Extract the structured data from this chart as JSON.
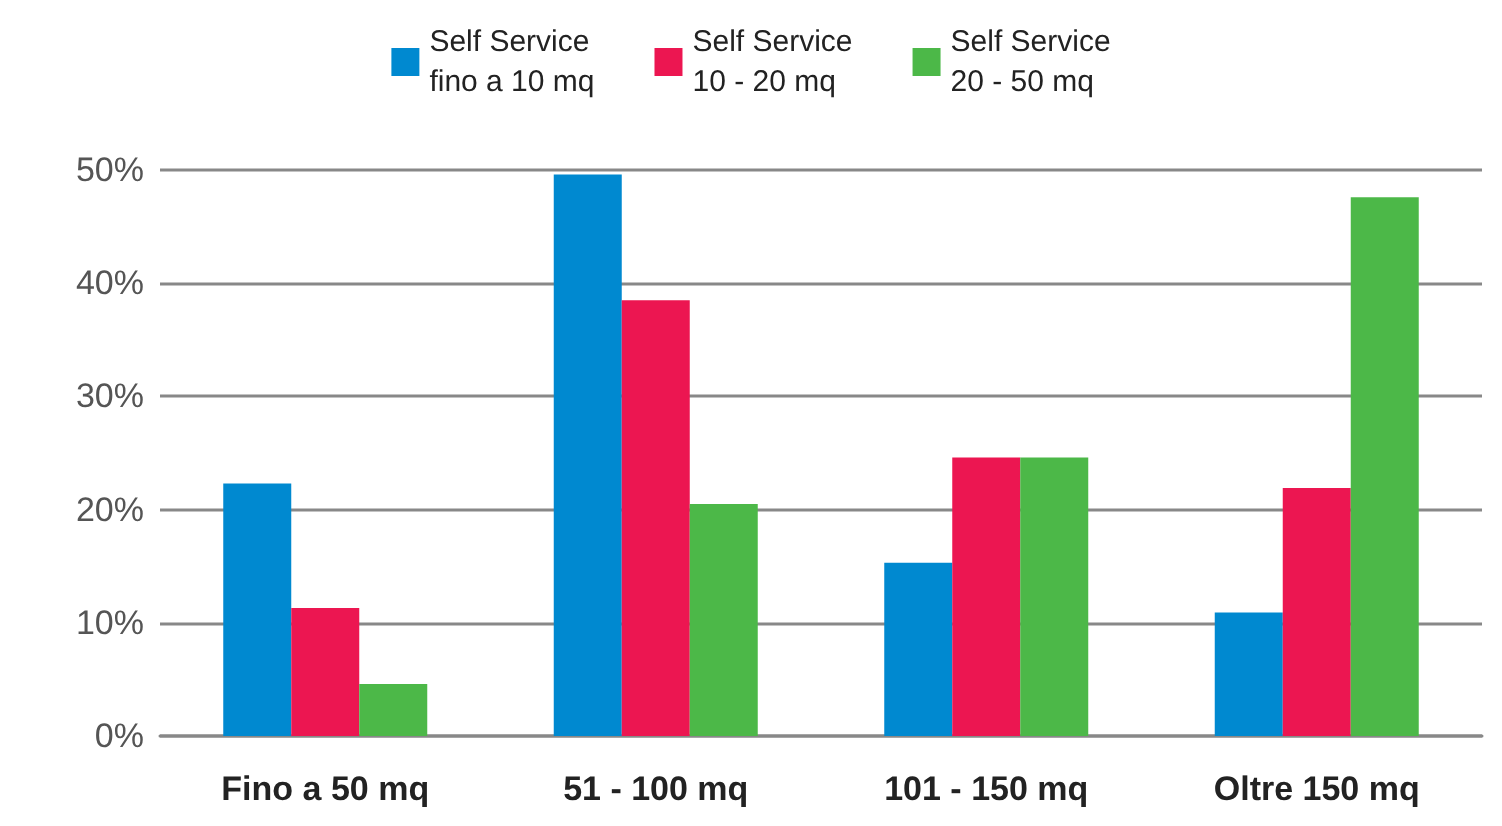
{
  "chart_data": {
    "type": "bar",
    "categories": [
      "Fino a 50 mq",
      "51 - 100 mq",
      "101 - 150 mq",
      "Oltre 150 mq"
    ],
    "series": [
      {
        "name": "Self Service\nfino a 10 mq",
        "color": "#0089d0",
        "values": [
          22.3,
          49.6,
          15.3,
          10.9
        ]
      },
      {
        "name": "Self Service\n10 - 20 mq",
        "color": "#ec1651",
        "values": [
          11.3,
          38.5,
          24.6,
          21.9
        ]
      },
      {
        "name": "Self Service\n20 - 50 mq",
        "color": "#4cb848",
        "values": [
          4.6,
          20.5,
          24.6,
          47.6
        ]
      }
    ],
    "ylim": [
      0,
      50
    ],
    "yticks": [
      {
        "value": 0,
        "label": "0%"
      },
      {
        "value": 10,
        "label": "10%"
      },
      {
        "value": 20,
        "label": "20%"
      },
      {
        "value": 30,
        "label": "30%"
      },
      {
        "value": 40,
        "label": "40%"
      },
      {
        "value": 50,
        "label": "50%"
      }
    ],
    "grid": "y",
    "legend": "top"
  }
}
